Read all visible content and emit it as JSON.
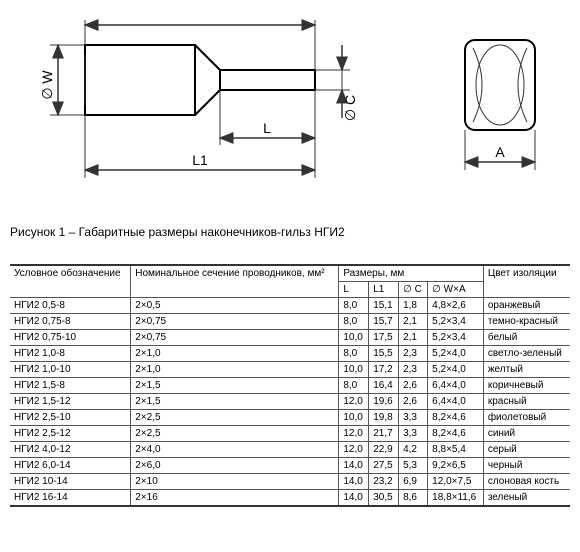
{
  "caption": "Рисунок 1 – Габаритные размеры наконечников-гильз НГИ2",
  "diagram_labels": {
    "W": "∅ W",
    "L1": "L1",
    "L": "L",
    "C": "∅ C",
    "A": "A"
  },
  "table": {
    "columns": [
      "Условное обозначение",
      "Номинальное сечение проводников, мм²",
      "L",
      "L1",
      "∅ C",
      "∅ W×A",
      "Цвет изоляции"
    ],
    "header_groups": {
      "dims": "Размеры, мм"
    },
    "rows": [
      [
        "НГИ2 0,5-8",
        "2×0,5",
        "8,0",
        "15,1",
        "1,8",
        "4,8×2,6",
        "оранжевый"
      ],
      [
        "НГИ2 0,75-8",
        "2×0,75",
        "8,0",
        "15,7",
        "2,1",
        "5,2×3,4",
        "темно-красный"
      ],
      [
        "НГИ2 0,75-10",
        "2×0,75",
        "10,0",
        "17,5",
        "2,1",
        "5,2×3,4",
        "белый"
      ],
      [
        "НГИ2 1,0-8",
        "2×1,0",
        "8,0",
        "15,5",
        "2,3",
        "5,2×4,0",
        "светло-зеленый"
      ],
      [
        "НГИ2 1,0-10",
        "2×1,0",
        "10,0",
        "17,2",
        "2,3",
        "5,2×4,0",
        "желтый"
      ],
      [
        "НГИ2 1,5-8",
        "2×1,5",
        "8,0",
        "16,4",
        "2,6",
        "6,4×4,0",
        "коричневый"
      ],
      [
        "НГИ2 1,5-12",
        "2×1,5",
        "12,0",
        "19,6",
        "2,6",
        "6,4×4,0",
        "красный"
      ],
      [
        "НГИ2 2,5-10",
        "2×2,5",
        "10,0",
        "19,8",
        "3,3",
        "8,2×4,6",
        "фиолетовый"
      ],
      [
        "НГИ2 2,5-12",
        "2×2,5",
        "12,0",
        "21,7",
        "3,3",
        "8,2×4,6",
        "синий"
      ],
      [
        "НГИ2 4,0-12",
        "2×4,0",
        "12,0",
        "22,9",
        "4,2",
        "8,8×5,4",
        "серый"
      ],
      [
        "НГИ2 6,0-14",
        "2×6,0",
        "14,0",
        "27,5",
        "5,3",
        "9,2×6,5",
        "черный"
      ],
      [
        "НГИ2 10-14",
        "2×10",
        "14,0",
        "23,2",
        "6,9",
        "12,0×7,5",
        "слоновая кость"
      ],
      [
        "НГИ2 16-14",
        "2×16",
        "14,0",
        "30,5",
        "8,6",
        "18,8×11,6",
        "зеленый"
      ]
    ]
  }
}
